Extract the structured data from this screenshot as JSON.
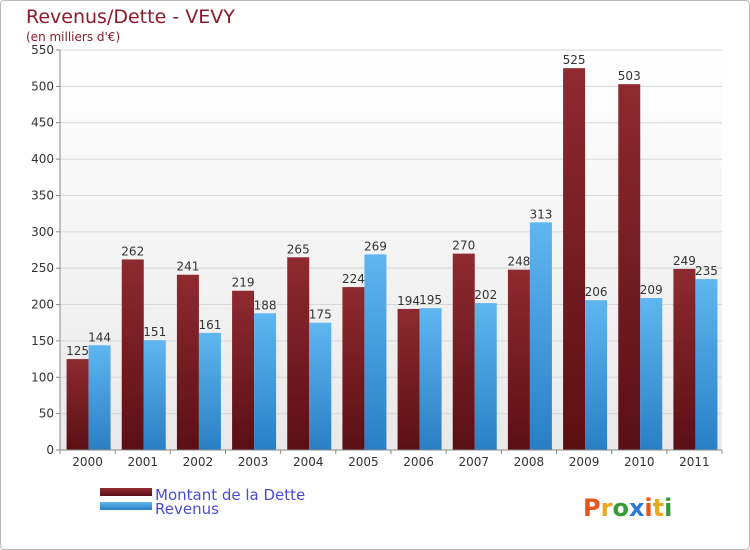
{
  "chart_data": {
    "type": "bar",
    "title": "Revenus/Dette - VEVY",
    "subtitle": "(en milliers d'€)",
    "categories": [
      "2000",
      "2001",
      "2002",
      "2003",
      "2004",
      "2005",
      "2006",
      "2007",
      "2008",
      "2009",
      "2010",
      "2011"
    ],
    "series": [
      {
        "name": "Montant de la Dette",
        "color": "#7a1f26",
        "values": [
          125,
          262,
          241,
          219,
          265,
          224,
          194,
          270,
          248,
          525,
          503,
          249
        ]
      },
      {
        "name": "Revenus",
        "color": "#3f9de0",
        "values": [
          144,
          151,
          161,
          188,
          175,
          269,
          195,
          202,
          313,
          206,
          209,
          235
        ]
      }
    ],
    "ylim": [
      0,
      550
    ],
    "yticks": [
      0,
      50,
      100,
      150,
      200,
      250,
      300,
      350,
      400,
      450,
      500,
      550
    ],
    "grid": true,
    "legend": "bottom-left",
    "xlabel": "",
    "ylabel": ""
  },
  "logo": {
    "text": "Proxiti",
    "colors": [
      "#e8541c",
      "#e8a820",
      "#3a9a3a",
      "#2a7bd8"
    ]
  }
}
